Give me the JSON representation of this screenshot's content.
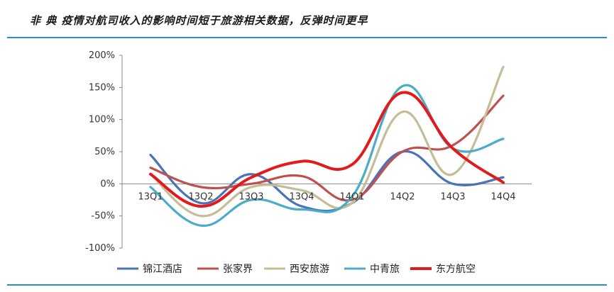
{
  "headline": "非 典 疫情对航司收入的影响时间短于旅游相关数据，反弹时间更早",
  "chart_data": {
    "type": "line",
    "title": "",
    "xlabel": "",
    "ylabel": "",
    "categories": [
      "13Q1",
      "13Q2",
      "13Q3",
      "13Q4",
      "14Q1",
      "14Q2",
      "14Q3",
      "14Q4"
    ],
    "ylim": [
      -100,
      200
    ],
    "yticks": [
      -100,
      -50,
      0,
      50,
      100,
      150,
      200
    ],
    "ytick_labels": [
      "-100%",
      "-50%",
      "0%",
      "50%",
      "100%",
      "150%",
      "200%"
    ],
    "grid": false,
    "legend_position": "bottom",
    "series": [
      {
        "name": "锦江酒店",
        "color": "#4a72b8",
        "values": [
          45,
          -30,
          15,
          -35,
          -30,
          50,
          0,
          10
        ]
      },
      {
        "name": "张家界",
        "color": "#c0504d",
        "values": [
          25,
          -5,
          0,
          12,
          -25,
          50,
          60,
          137
        ]
      },
      {
        "name": "西安旅游",
        "color": "#c4bd97",
        "values": [
          15,
          -50,
          -5,
          -10,
          -30,
          112,
          15,
          182
        ]
      },
      {
        "name": "中青旅",
        "color": "#4bacc6",
        "values": [
          -5,
          -65,
          -25,
          -40,
          -20,
          152,
          55,
          70
        ]
      },
      {
        "name": "东方航空",
        "color": "#e31a1c",
        "values": [
          15,
          -35,
          10,
          35,
          30,
          142,
          55,
          2
        ]
      }
    ]
  }
}
